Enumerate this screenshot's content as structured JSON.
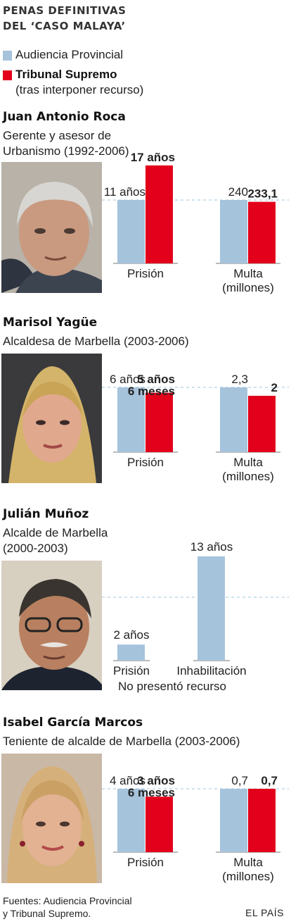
{
  "title_line1": "PENAS DEFINITIVAS",
  "title_line2": "DEL ‘CASO MALAYA’",
  "legend": {
    "provincial": "Audiencia Provincial",
    "supremo": "Tribunal Supremo",
    "supremo_note": "(tras interponer recurso)"
  },
  "colors": {
    "provincial": "#a6c3dc",
    "supremo": "#e3001b",
    "dashed": "#9fc4df"
  },
  "people": [
    {
      "name": "Juan Antonio Roca",
      "role_lines": [
        "Gerente y asesor de",
        "Urbanismo (1992-2006)"
      ]
    },
    {
      "name": "Marisol Yagüe",
      "role_lines": [
        "Alcaldesa de Marbella (2003-2006)"
      ]
    },
    {
      "name": "Julián Muñoz",
      "role_lines": [
        "Alcalde de Marbella",
        "(2000-2003)"
      ]
    },
    {
      "name": "Isabel García Marcos",
      "role_lines": [
        "Teniente de alcalde de Marbella (2003-2006)"
      ]
    }
  ],
  "chart_data": [
    {
      "type": "bar",
      "person": "Juan Antonio Roca",
      "groups": [
        {
          "label": [
            "Prisión"
          ],
          "values": [
            11,
            17
          ],
          "value_labels": [
            [
              "11 años"
            ],
            [
              "17 años"
            ]
          ],
          "unit": "años"
        },
        {
          "label": [
            "Multa",
            "(millones)"
          ],
          "values": [
            240,
            233.1
          ],
          "value_labels": [
            [
              "240"
            ],
            [
              "233,1"
            ]
          ],
          "unit": "millones"
        }
      ],
      "series": [
        "Audiencia Provincial",
        "Tribunal Supremo"
      ]
    },
    {
      "type": "bar",
      "person": "Marisol Yagüe",
      "groups": [
        {
          "label": [
            "Prisión"
          ],
          "values": [
            6,
            5.5
          ],
          "value_labels": [
            [
              "6 años"
            ],
            [
              "5 años",
              "6 meses"
            ]
          ],
          "unit": "años"
        },
        {
          "label": [
            "Multa",
            "(millones)"
          ],
          "values": [
            2.3,
            2
          ],
          "value_labels": [
            [
              "2,3"
            ],
            [
              "2"
            ]
          ],
          "unit": "millones"
        }
      ],
      "series": [
        "Audiencia Provincial",
        "Tribunal Supremo"
      ]
    },
    {
      "type": "bar",
      "person": "Julián Muñoz",
      "groups": [
        {
          "label": [
            "Prisión"
          ],
          "values": [
            2
          ],
          "value_labels": [
            [
              "2 años"
            ]
          ],
          "unit": "años"
        },
        {
          "label": [
            "Inhabilitación"
          ],
          "values": [
            13
          ],
          "value_labels": [
            [
              "13 años"
            ]
          ],
          "unit": "años"
        }
      ],
      "series": [
        "Audiencia Provincial"
      ],
      "note": "No presentó recurso"
    },
    {
      "type": "bar",
      "person": "Isabel García Marcos",
      "groups": [
        {
          "label": [
            "Prisión"
          ],
          "values": [
            4,
            3.5
          ],
          "value_labels": [
            [
              "4 años"
            ],
            [
              "3 años",
              "6 meses"
            ]
          ],
          "unit": "años"
        },
        {
          "label": [
            "Multa",
            "(millones)"
          ],
          "values": [
            0.7,
            0.7
          ],
          "value_labels": [
            [
              "0,7"
            ],
            [
              "0,7"
            ]
          ],
          "unit": "millones"
        }
      ],
      "series": [
        "Audiencia Provincial",
        "Tribunal Supremo"
      ]
    }
  ],
  "footer_line1": "Fuentes: Audiencia Provincial",
  "footer_line2": "y Tribunal Supremo.",
  "brand": "EL PAÍS"
}
